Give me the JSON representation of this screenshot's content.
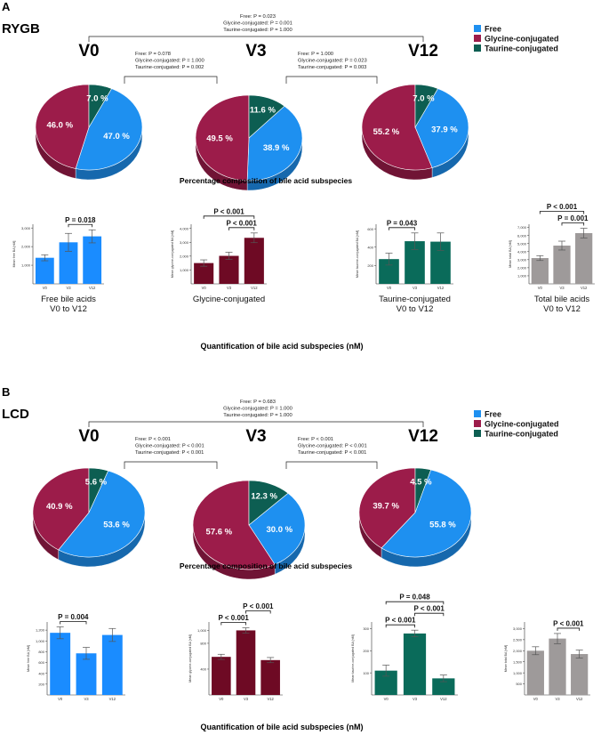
{
  "colors": {
    "free": "#1e90f0",
    "glycine": "#9c1c4a",
    "taurine": "#0d5e52",
    "free_bar": "#1a8cff",
    "glycine_bar": "#6e0a24",
    "taurine_bar": "#0a6b5a",
    "total_bar": "#9e9a9a"
  },
  "legend": [
    "Free",
    "Glycine-conjugated",
    "Taurine-conjugated"
  ],
  "panels": [
    {
      "letter": "A",
      "group": "RYGB",
      "timepoints": [
        "V0",
        "V3",
        "V12"
      ],
      "comparisons": {
        "v0_v12": [
          "Free: P = 0.023",
          "Glycine-conjugated: P = 0.001",
          "Taurine-conjugated: P = 1.000"
        ],
        "v0_v3": [
          "Free: P = 0.078",
          "Glycine-conjugated: P = 1.000",
          "Taurine-conjugated: P = 0.002"
        ],
        "v3_v12": [
          "Free: P = 1.000",
          "Glycine-conjugated: P = 0.023",
          "Taurine-conjugated: P = 0.003"
        ]
      },
      "pie_caption": "Percentage composition of bile acid subspecies",
      "bar_caption": "Quantification of bile acid subspecies (nM)"
    },
    {
      "letter": "B",
      "group": "LCD",
      "timepoints": [
        "V0",
        "V3",
        "V12"
      ],
      "comparisons": {
        "v0_v12": [
          "Free: P = 0.683",
          "Glycine-conjugated: P = 1.000",
          "Taurine-conjugated: P = 1.000"
        ],
        "v0_v3": [
          "Free: P < 0.001",
          "Glycine-conjugated: P < 0.001",
          "Taurine-conjugated: P < 0.001"
        ],
        "v3_v12": [
          "Free: P < 0.001",
          "Glycine-conjugated: P < 0.001",
          "Taurine-conjugated: P < 0.001"
        ]
      },
      "pie_caption": "Percentage composition of bile acid subspecies",
      "bar_caption": "Quantification of bile acid subspecies (nM)"
    }
  ],
  "chart_data": [
    {
      "type": "pie",
      "panel": "A",
      "group": "RYGB",
      "pies": [
        {
          "timepoint": "V0",
          "slices": [
            {
              "name": "Free",
              "value": 47.0,
              "label": "47.0 %"
            },
            {
              "name": "Glycine-conjugated",
              "value": 46.0,
              "label": "46.0 %"
            },
            {
              "name": "Taurine-conjugated",
              "value": 7.0,
              "label": "7.0 %"
            }
          ]
        },
        {
          "timepoint": "V3",
          "slices": [
            {
              "name": "Free",
              "value": 38.9,
              "label": "38.9 %"
            },
            {
              "name": "Glycine-conjugated",
              "value": 49.5,
              "label": "49.5 %"
            },
            {
              "name": "Taurine-conjugated",
              "value": 11.6,
              "label": "11.6 %"
            }
          ]
        },
        {
          "timepoint": "V12",
          "slices": [
            {
              "name": "Free",
              "value": 37.9,
              "label": "37.9 %"
            },
            {
              "name": "Glycine-conjugated",
              "value": 55.2,
              "label": "55.2 %"
            },
            {
              "name": "Taurine-conjugated",
              "value": 7.0,
              "label": "7.0 %"
            }
          ]
        }
      ]
    },
    {
      "type": "bar",
      "panel": "A",
      "charts": [
        {
          "key": "free",
          "title": [
            "Free bile acids",
            "V0 to V12"
          ],
          "ylabel": "Mean free BA [nM]",
          "categories": [
            "V0",
            "V3",
            "V12"
          ],
          "values": [
            1400,
            2230,
            2550
          ],
          "errors": [
            160,
            480,
            350
          ],
          "ylim": [
            0,
            3200
          ],
          "yticks": [
            1000,
            2000,
            3000
          ],
          "yticklabels": [
            "1,000",
            "2,000",
            "3,000"
          ],
          "sig": [
            {
              "from": 1,
              "to": 2,
              "label": "P = 0.018"
            }
          ]
        },
        {
          "key": "glycine",
          "title": [
            "Glycine-conjugated"
          ],
          "ylabel": "Mean glycine-conjugated BA [nM]",
          "categories": [
            "V0",
            "V3",
            "V12"
          ],
          "values": [
            1500,
            2020,
            3320
          ],
          "errors": [
            230,
            260,
            350
          ],
          "ylim": [
            0,
            4300
          ],
          "yticks": [
            1000,
            2000,
            3000,
            4000
          ],
          "yticklabels": [
            "1,000",
            "2,000",
            "3,000",
            "4,000"
          ],
          "sig": [
            {
              "from": 0,
              "to": 2,
              "label": "P < 0.001"
            },
            {
              "from": 1,
              "to": 2,
              "label": "P < 0.001"
            }
          ]
        },
        {
          "key": "taurine",
          "title": [
            "Taurine-conjugated",
            "V0 to V12"
          ],
          "ylabel": "Mean taurine-conjugated BA [nM]",
          "categories": [
            "V0",
            "V3",
            "V12"
          ],
          "values": [
            270,
            465,
            460
          ],
          "errors": [
            65,
            90,
            95
          ],
          "ylim": [
            0,
            650
          ],
          "yticks": [
            200,
            400,
            600
          ],
          "yticklabels": [
            "200",
            "400",
            "600"
          ],
          "sig": [
            {
              "from": 0,
              "to": 1,
              "label": "P = 0.043"
            }
          ]
        },
        {
          "key": "total",
          "title": [
            "Total bile acids",
            "V0 to V12"
          ],
          "ylabel": "Mean total BA [nM]",
          "categories": [
            "V0",
            "V3",
            "V12"
          ],
          "values": [
            3200,
            4750,
            6300
          ],
          "errors": [
            300,
            550,
            600
          ],
          "ylim": [
            0,
            7400
          ],
          "yticks": [
            1000,
            2000,
            3000,
            4000,
            5000,
            6000,
            7000
          ],
          "yticklabels": [
            "1,000",
            "2,000",
            "3,000",
            "4,000",
            "5,000",
            "6,000",
            "7,000"
          ],
          "sig": [
            {
              "from": 0,
              "to": 2,
              "label": "P < 0.001"
            },
            {
              "from": 1,
              "to": 2,
              "label": "P = 0.001"
            }
          ]
        }
      ]
    },
    {
      "type": "pie",
      "panel": "B",
      "group": "LCD",
      "pies": [
        {
          "timepoint": "V0",
          "slices": [
            {
              "name": "Free",
              "value": 53.6,
              "label": "53.6 %"
            },
            {
              "name": "Glycine-conjugated",
              "value": 40.9,
              "label": "40.9 %"
            },
            {
              "name": "Taurine-conjugated",
              "value": 5.6,
              "label": "5.6 %"
            }
          ]
        },
        {
          "timepoint": "V3",
          "slices": [
            {
              "name": "Free",
              "value": 30.0,
              "label": "30.0 %"
            },
            {
              "name": "Glycine-conjugated",
              "value": 57.6,
              "label": "57.6 %"
            },
            {
              "name": "Taurine-conjugated",
              "value": 12.3,
              "label": "12.3 %"
            }
          ]
        },
        {
          "timepoint": "V12",
          "slices": [
            {
              "name": "Free",
              "value": 55.8,
              "label": "55.8 %"
            },
            {
              "name": "Glycine-conjugated",
              "value": 39.7,
              "label": "39.7 %"
            },
            {
              "name": "Taurine-conjugated",
              "value": 4.5,
              "label": "4.5 %"
            }
          ]
        }
      ]
    },
    {
      "type": "bar",
      "panel": "B",
      "charts": [
        {
          "key": "free",
          "title": [],
          "ylabel": "Mean free BA [nM]",
          "categories": [
            "V0",
            "V3",
            "V12"
          ],
          "values": [
            1150,
            770,
            1110
          ],
          "errors": [
            110,
            110,
            120
          ],
          "ylim": [
            0,
            1350
          ],
          "yticks": [
            200,
            400,
            600,
            800,
            1000,
            1200
          ],
          "yticklabels": [
            "200",
            "400",
            "600",
            "800",
            "1,000",
            "1,200"
          ],
          "sig": [
            {
              "from": 0,
              "to": 1,
              "label": "P = 0.004"
            }
          ]
        },
        {
          "key": "glycine",
          "title": [],
          "ylabel": "Mean glycine-conjugated BA [nM]",
          "categories": [
            "V0",
            "V3",
            "V12"
          ],
          "values": [
            590,
            1000,
            540
          ],
          "errors": [
            40,
            40,
            40
          ],
          "ylim": [
            0,
            1130
          ],
          "yticks": [
            400,
            800,
            1000
          ],
          "yticklabels": [
            "400",
            "800",
            "1,000"
          ],
          "sig": [
            {
              "from": 0,
              "to": 1,
              "label": "P < 0.001"
            },
            {
              "from": 1,
              "to": 2,
              "label": "P < 0.001"
            }
          ]
        },
        {
          "key": "taurine",
          "title": [],
          "ylabel": "Mean taurine-conjugated BA [nM]",
          "categories": [
            "V0",
            "V3",
            "V12"
          ],
          "values": [
            110,
            278,
            75
          ],
          "errors": [
            25,
            15,
            15
          ],
          "ylim": [
            0,
            330
          ],
          "yticks": [
            100,
            200,
            300
          ],
          "yticklabels": [
            "100",
            "200",
            "300"
          ],
          "sig": [
            {
              "from": 0,
              "to": 2,
              "label": "P = 0.048"
            },
            {
              "from": 0,
              "to": 1,
              "label": "P < 0.001"
            },
            {
              "from": 1,
              "to": 2,
              "label": "P < 0.001"
            }
          ]
        },
        {
          "key": "total",
          "title": [],
          "ylabel": "Mean total BA [nM]",
          "categories": [
            "V0",
            "V3",
            "V12"
          ],
          "values": [
            2000,
            2550,
            1850
          ],
          "errors": [
            180,
            230,
            180
          ],
          "ylim": [
            0,
            3300
          ],
          "yticks": [
            500,
            1000,
            1500,
            2000,
            2500,
            3000
          ],
          "yticklabels": [
            "500",
            "1,000",
            "1,500",
            "2,000",
            "2,500",
            "3,000"
          ],
          "sig": [
            {
              "from": 1,
              "to": 2,
              "label": "P < 0.001"
            }
          ]
        }
      ]
    }
  ]
}
